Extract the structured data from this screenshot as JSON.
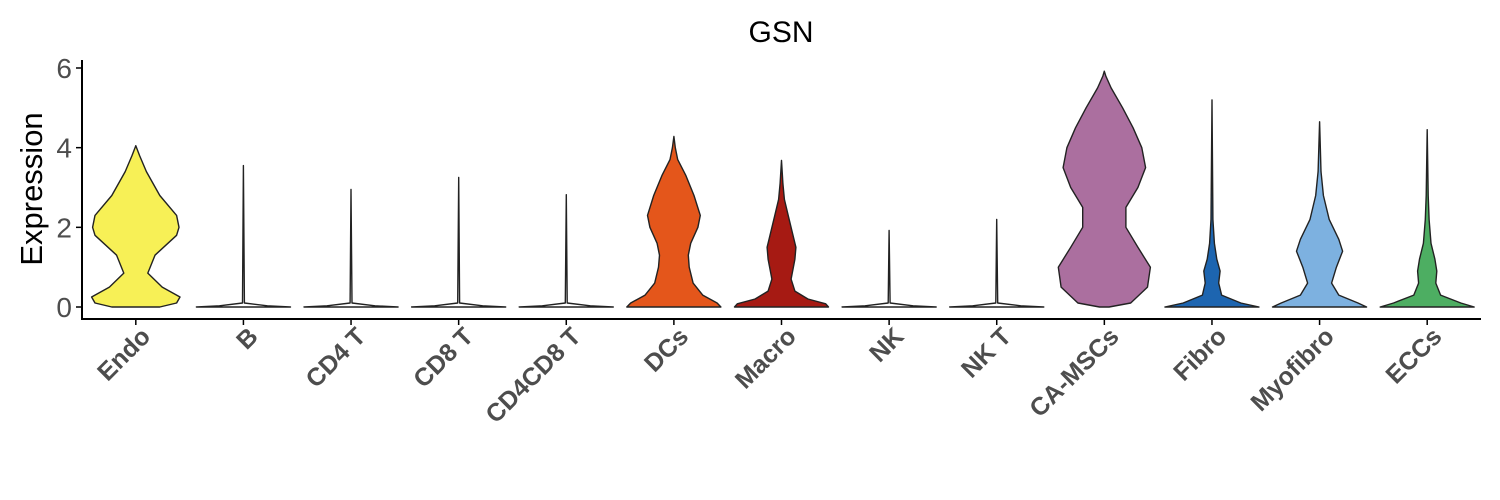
{
  "chart_data": {
    "type": "violin",
    "title": "GSN",
    "xlabel": "",
    "ylabel": "Expression",
    "ylim": [
      -0.3,
      6.2
    ],
    "yticks": [
      0,
      2,
      4,
      6
    ],
    "grid": false,
    "legend": "none",
    "categories": [
      "Endo",
      "B",
      "CD4 T",
      "CD8 T",
      "CD4CD8 T",
      "DCs",
      "Macro",
      "NK",
      "NK T",
      "CA-MSCs",
      "Fibro",
      "Myofibro",
      "ECCs"
    ],
    "series": [
      {
        "category": "Endo",
        "color": "#f7f056",
        "max": 4.05,
        "profile": [
          [
            0,
            0.5
          ],
          [
            0.1,
            0.85
          ],
          [
            0.25,
            0.92
          ],
          [
            0.5,
            0.55
          ],
          [
            0.85,
            0.25
          ],
          [
            1.3,
            0.4
          ],
          [
            1.8,
            0.85
          ],
          [
            2.0,
            0.9
          ],
          [
            2.3,
            0.85
          ],
          [
            2.8,
            0.5
          ],
          [
            3.4,
            0.22
          ],
          [
            3.8,
            0.08
          ],
          [
            4.05,
            0
          ]
        ]
      },
      {
        "category": "B",
        "color": "#ffffff",
        "max": 3.55,
        "profile": [
          [
            0,
            0.98
          ],
          [
            0.03,
            0.5
          ],
          [
            0.1,
            0.02
          ],
          [
            3.55,
            0
          ]
        ]
      },
      {
        "category": "CD4 T",
        "color": "#ffffff",
        "max": 2.95,
        "profile": [
          [
            0,
            0.98
          ],
          [
            0.03,
            0.5
          ],
          [
            0.1,
            0.02
          ],
          [
            2.95,
            0
          ]
        ]
      },
      {
        "category": "CD8 T",
        "color": "#ffffff",
        "max": 3.25,
        "profile": [
          [
            0,
            0.98
          ],
          [
            0.03,
            0.5
          ],
          [
            0.1,
            0.02
          ],
          [
            3.25,
            0
          ]
        ]
      },
      {
        "category": "CD4CD8 T",
        "color": "#ffffff",
        "max": 2.82,
        "profile": [
          [
            0,
            0.98
          ],
          [
            0.03,
            0.5
          ],
          [
            0.1,
            0.02
          ],
          [
            2.82,
            0
          ]
        ]
      },
      {
        "category": "DCs",
        "color": "#e4561b",
        "max": 4.28,
        "profile": [
          [
            0,
            0.98
          ],
          [
            0.1,
            0.9
          ],
          [
            0.3,
            0.6
          ],
          [
            0.6,
            0.4
          ],
          [
            1.0,
            0.32
          ],
          [
            1.3,
            0.3
          ],
          [
            1.6,
            0.35
          ],
          [
            2.0,
            0.5
          ],
          [
            2.3,
            0.55
          ],
          [
            2.8,
            0.42
          ],
          [
            3.3,
            0.25
          ],
          [
            3.7,
            0.08
          ],
          [
            4.0,
            0.03
          ],
          [
            4.28,
            0
          ]
        ]
      },
      {
        "category": "Macro",
        "color": "#a61a13",
        "max": 3.68,
        "profile": [
          [
            0,
            0.98
          ],
          [
            0.08,
            0.92
          ],
          [
            0.2,
            0.55
          ],
          [
            0.4,
            0.28
          ],
          [
            0.7,
            0.2
          ],
          [
            1.2,
            0.28
          ],
          [
            1.5,
            0.3
          ],
          [
            1.8,
            0.24
          ],
          [
            2.3,
            0.14
          ],
          [
            2.7,
            0.06
          ],
          [
            3.1,
            0.03
          ],
          [
            3.68,
            0
          ]
        ]
      },
      {
        "category": "NK",
        "color": "#ffffff",
        "max": 1.92,
        "profile": [
          [
            0,
            0.98
          ],
          [
            0.03,
            0.5
          ],
          [
            0.1,
            0.02
          ],
          [
            1.92,
            0
          ]
        ]
      },
      {
        "category": "NK T",
        "color": "#ffffff",
        "max": 2.2,
        "profile": [
          [
            0,
            0.98
          ],
          [
            0.03,
            0.5
          ],
          [
            0.1,
            0.02
          ],
          [
            2.2,
            0
          ]
        ]
      },
      {
        "category": "CA-MSCs",
        "color": "#ab6f9f",
        "max": 5.92,
        "profile": [
          [
            0,
            0.1
          ],
          [
            0.1,
            0.55
          ],
          [
            0.5,
            0.9
          ],
          [
            1.0,
            0.96
          ],
          [
            1.5,
            0.7
          ],
          [
            2.0,
            0.45
          ],
          [
            2.5,
            0.45
          ],
          [
            3.0,
            0.7
          ],
          [
            3.5,
            0.86
          ],
          [
            4.0,
            0.78
          ],
          [
            4.5,
            0.6
          ],
          [
            5.0,
            0.38
          ],
          [
            5.5,
            0.14
          ],
          [
            5.8,
            0.03
          ],
          [
            5.92,
            0
          ]
        ]
      },
      {
        "category": "Fibro",
        "color": "#1d65b0",
        "max": 5.2,
        "profile": [
          [
            0,
            0.98
          ],
          [
            0.1,
            0.6
          ],
          [
            0.3,
            0.2
          ],
          [
            0.6,
            0.14
          ],
          [
            0.9,
            0.17
          ],
          [
            1.2,
            0.1
          ],
          [
            1.6,
            0.05
          ],
          [
            2.2,
            0.02
          ],
          [
            5.2,
            0
          ]
        ]
      },
      {
        "category": "Myofibro",
        "color": "#7db1e0",
        "max": 4.65,
        "profile": [
          [
            0,
            0.98
          ],
          [
            0.1,
            0.8
          ],
          [
            0.3,
            0.4
          ],
          [
            0.6,
            0.25
          ],
          [
            1.0,
            0.35
          ],
          [
            1.4,
            0.48
          ],
          [
            1.7,
            0.4
          ],
          [
            2.2,
            0.2
          ],
          [
            2.8,
            0.08
          ],
          [
            3.4,
            0.03
          ],
          [
            4.65,
            0
          ]
        ]
      },
      {
        "category": "ECCs",
        "color": "#4dae62",
        "max": 4.45,
        "profile": [
          [
            0,
            0.98
          ],
          [
            0.1,
            0.7
          ],
          [
            0.3,
            0.28
          ],
          [
            0.6,
            0.18
          ],
          [
            0.9,
            0.2
          ],
          [
            1.2,
            0.16
          ],
          [
            1.6,
            0.08
          ],
          [
            2.2,
            0.04
          ],
          [
            2.8,
            0.02
          ],
          [
            4.45,
            0
          ]
        ]
      }
    ]
  }
}
